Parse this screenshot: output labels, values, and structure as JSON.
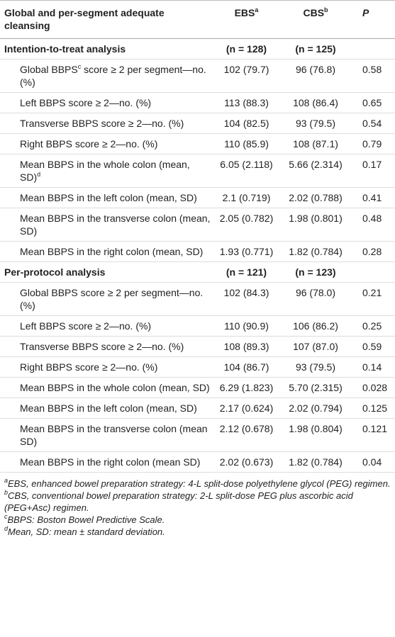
{
  "header": {
    "columns": [
      {
        "text": "Global and per-segment adequate cleansing"
      },
      {
        "text": "EBS",
        "sup": "a"
      },
      {
        "text": "CBS",
        "sup": "b"
      },
      {
        "text": "P"
      }
    ]
  },
  "sections": [
    {
      "title": "Intention-to-treat analysis",
      "n_ebs": "(n = 128)",
      "n_cbs": "(n = 125)",
      "rows": [
        {
          "label": "Global BBPS",
          "sup": "c",
          "label_end": " score ≥ 2 per segment—no. (%)",
          "cells": [
            "102 (79.7)",
            "96 (76.8)",
            "0.58"
          ]
        },
        {
          "label": "Left BBPS score ≥ 2—no. (%)",
          "cells": [
            "113 (88.3)",
            "108 (86.4)",
            "0.65"
          ]
        },
        {
          "label": "Transverse BBPS score ≥ 2—no. (%)",
          "cells": [
            "104 (82.5)",
            "93 (79.5)",
            "0.54"
          ]
        },
        {
          "label": "Right BBPS score ≥ 2—no. (%)",
          "cells": [
            "110 (85.9)",
            "108 (87.1)",
            "0.79"
          ]
        },
        {
          "label": "Mean BBPS in the whole colon (mean, SD)",
          "sup": "d",
          "cells": [
            "6.05 (2.118)",
            "5.66 (2.314)",
            "0.17"
          ]
        },
        {
          "label": "Mean BBPS in the left colon (mean, SD)",
          "cells": [
            "2.1 (0.719)",
            "2.02 (0.788)",
            "0.41"
          ]
        },
        {
          "label": "Mean BBPS in the transverse colon (mean, SD)",
          "cells": [
            "2.05 (0.782)",
            "1.98 (0.801)",
            "0.48"
          ]
        },
        {
          "label": "Mean BBPS in the right colon (mean, SD)",
          "cells": [
            "1.93 (0.771)",
            "1.82 (0.784)",
            "0.28"
          ]
        }
      ]
    },
    {
      "title": "Per-protocol analysis",
      "n_ebs": "(n = 121)",
      "n_cbs": "(n = 123)",
      "rows": [
        {
          "label": "Global BBPS score ≥ 2 per segment—no. (%)",
          "cells": [
            "102 (84.3)",
            "96 (78.0)",
            "0.21"
          ]
        },
        {
          "label": "Left BBPS score ≥ 2—no. (%)",
          "cells": [
            "110 (90.9)",
            "106 (86.2)",
            "0.25"
          ]
        },
        {
          "label": "Transverse BBPS score ≥ 2—no. (%)",
          "cells": [
            "108 (89.3)",
            "107 (87.0)",
            "0.59"
          ]
        },
        {
          "label": "Right BBPS score ≥ 2—no. (%)",
          "cells": [
            "104 (86.7)",
            "93 (79.5)",
            "0.14"
          ]
        },
        {
          "label": "Mean BBPS in the whole colon (mean, SD)",
          "cells": [
            "6.29 (1.823)",
            "5.70 (2.315)",
            "0.028"
          ]
        },
        {
          "label": "Mean BBPS in the left colon (mean, SD)",
          "cells": [
            "2.17 (0.624)",
            "2.02 (0.794)",
            "0.125"
          ]
        },
        {
          "label": "Mean BBPS in the transverse colon (mean SD)",
          "cells": [
            "2.12 (0.678)",
            "1.98 (0.804)",
            "0.121"
          ]
        },
        {
          "label": "Mean BBPS in the right colon (mean SD)",
          "cells": [
            "2.02 (0.673)",
            "1.82 (0.784)",
            "0.04"
          ]
        }
      ]
    }
  ],
  "footnotes": [
    {
      "sup": "a",
      "text": "EBS, enhanced bowel preparation strategy: 4-L split-dose polyethylene glycol (PEG) regimen."
    },
    {
      "sup": "b",
      "text": "CBS, conventional bowel preparation strategy: 2-L split-dose PEG plus ascorbic acid (PEG+Asc) regimen."
    },
    {
      "sup": "c",
      "text": "BBPS: Boston Bowel Predictive Scale."
    },
    {
      "sup": "d",
      "text": "Mean, SD: mean ± standard deviation."
    }
  ]
}
